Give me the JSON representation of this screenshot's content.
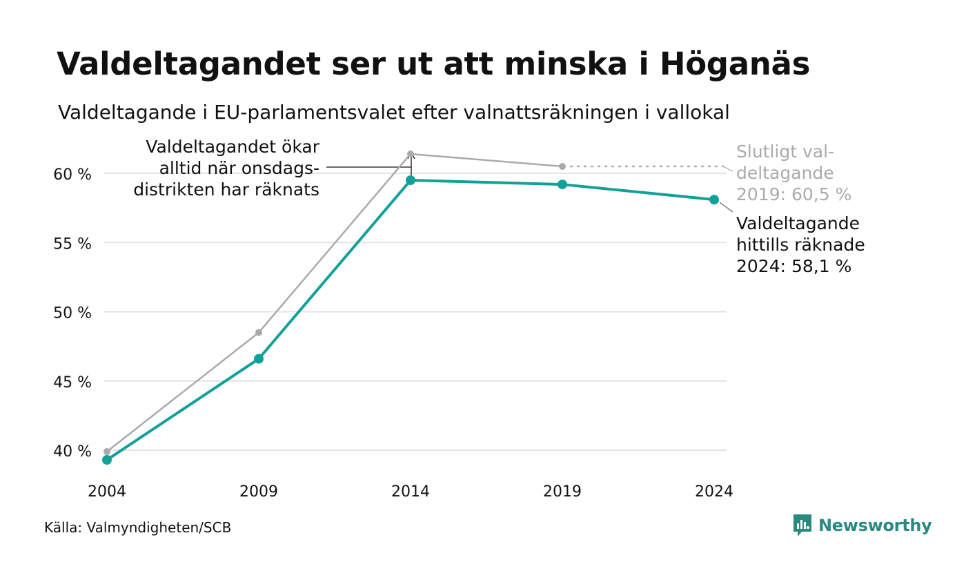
{
  "title": "Valdeltagandet ser ut att minska i Höganäs",
  "subtitle": "Valdeltagande i EU-parlamentsvalet efter valnattsräkningen i vallokal",
  "source": "Källa: Valmyndigheten/SCB",
  "brand": "Newsworthy",
  "colors": {
    "preliminary": "#12a198",
    "final": "#aaaaaa",
    "grid": "#e3e3e3",
    "text": "#111111",
    "brand": "#2a8a80"
  },
  "chart_data": {
    "type": "line",
    "x": [
      "2004",
      "2009",
      "2014",
      "2019",
      "2024"
    ],
    "ylim": [
      39,
      62
    ],
    "yticks": [
      40,
      45,
      50,
      55,
      60
    ],
    "ytick_labels": [
      "40 %",
      "45 %",
      "50 %",
      "55 %",
      "60 %"
    ],
    "grid": true,
    "series": [
      {
        "key": "final",
        "values": [
          39.9,
          48.5,
          61.4,
          60.5,
          null
        ]
      },
      {
        "key": "preliminary",
        "values": [
          39.3,
          46.6,
          59.5,
          59.2,
          58.1
        ]
      }
    ],
    "annotations": {
      "onsdag": [
        "Valdeltagandet ökar",
        "alltid när onsdags-",
        "distrikten har räknats"
      ],
      "final_2019": [
        "Slutligt val-",
        "deltagande",
        "2019: 60,5 %"
      ],
      "prelim_2024": [
        "Valdeltagande",
        "hittills räknade",
        "2024: 58,1 %"
      ]
    }
  }
}
